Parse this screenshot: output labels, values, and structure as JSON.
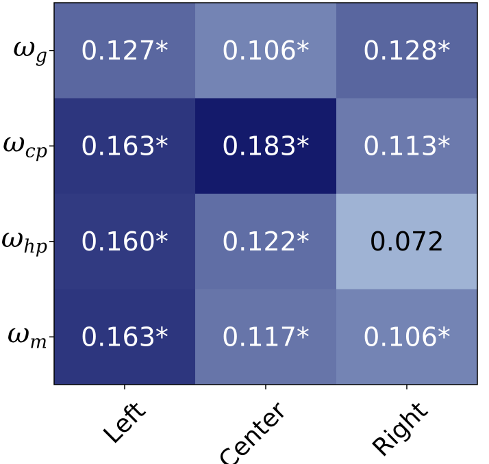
{
  "chart_data": {
    "type": "heatmap",
    "title": "",
    "xlabel": "",
    "ylabel": "",
    "x_categories": [
      "Left",
      "Center",
      "Right"
    ],
    "y_categories": [
      {
        "base": "ω",
        "sub": "g"
      },
      {
        "base": "ω",
        "sub": "cp"
      },
      {
        "base": "ω",
        "sub": "hp"
      },
      {
        "base": "ω",
        "sub": "m"
      }
    ],
    "values": [
      [
        0.127,
        0.106,
        0.128
      ],
      [
        0.163,
        0.183,
        0.113
      ],
      [
        0.16,
        0.122,
        0.072
      ],
      [
        0.163,
        0.117,
        0.106
      ]
    ],
    "labels": [
      [
        "0.127*",
        "0.106*",
        "0.128*"
      ],
      [
        "0.163*",
        "0.183*",
        "0.113*"
      ],
      [
        "0.160*",
        "0.122*",
        "0.072"
      ],
      [
        "0.163*",
        "0.117*",
        "0.106*"
      ]
    ],
    "colormap": "light-to-dark blue (Blues-like)",
    "color_low": "#9fb3d4",
    "color_high": "#141a6b",
    "value_range": [
      0.072,
      0.183
    ],
    "text_color_light": "#ffffff",
    "text_color_dark": "#000000",
    "colorbar": false,
    "grid": false
  }
}
